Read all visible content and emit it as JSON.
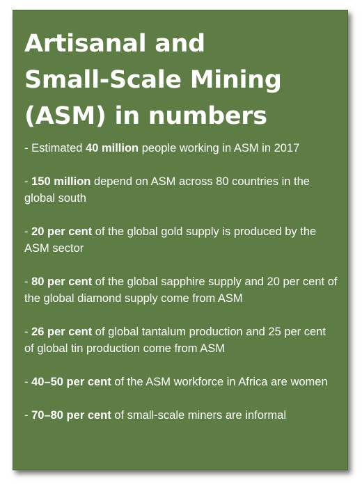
{
  "title": {
    "line1": "Artisanal and",
    "line2": "Small-Scale Mining",
    "line3": "(ASM) in numbers"
  },
  "facts": [
    {
      "prefix": "- Estimated ",
      "bold": "40 million",
      "rest": " people working in ASM in 2017"
    },
    {
      "prefix": "- ",
      "bold": "150 million",
      "rest": " depend on ASM across 80 countries in the global south"
    },
    {
      "prefix": "- ",
      "bold": "20 per cent",
      "rest": " of the global gold supply is produced by the ASM sector"
    },
    {
      "prefix": "- ",
      "bold": "80 per cent",
      "rest": " of the global sapphire supply and 20 per cent of the global diamond supply come from ASM"
    },
    {
      "prefix": "- ",
      "bold": "26 per cent",
      "rest": " of global tantalum production and 25 per cent of global tin production come from ASM"
    },
    {
      "prefix": "- ",
      "bold": "40–50 per cent",
      "rest": " of the ASM workforce in Africa are women"
    },
    {
      "prefix": "- ",
      "bold": "70–80 per cent",
      "rest": " of small-scale miners are informal"
    }
  ],
  "colors": {
    "card_background": "#5e7d45",
    "text": "#ffffff"
  }
}
